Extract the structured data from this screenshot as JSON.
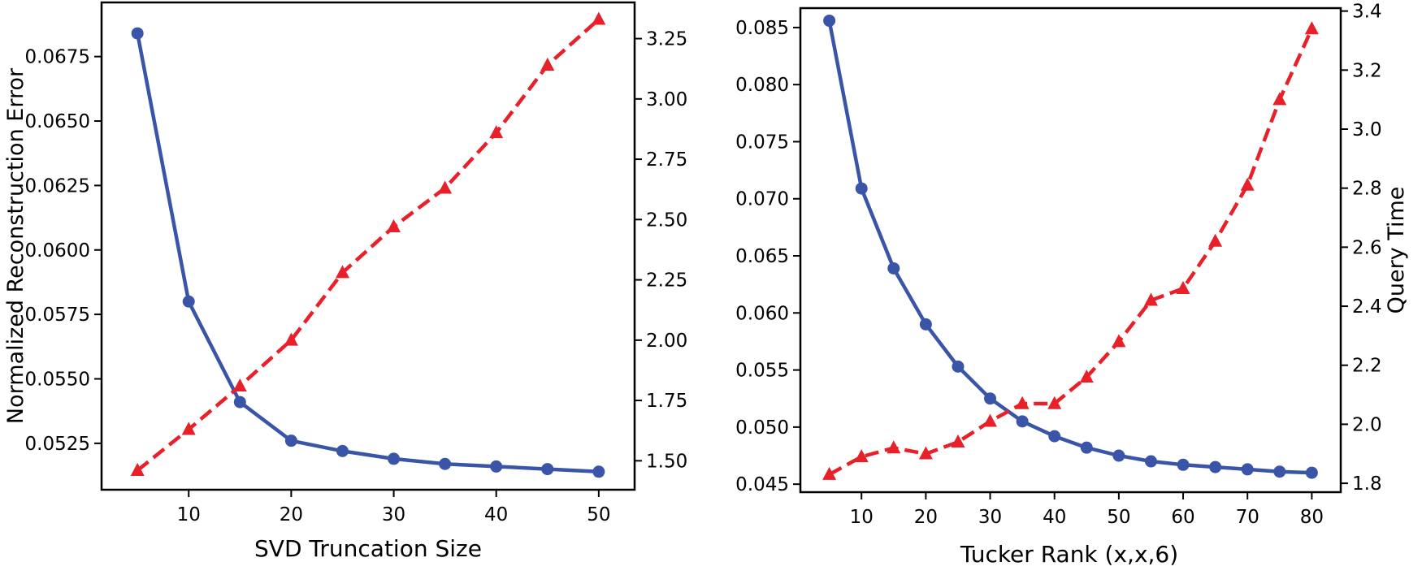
{
  "chart_data": [
    {
      "type": "line",
      "xlabel": "SVD  Truncation Size",
      "ylabel": "Normalized Reconstruction Error",
      "y2label": "",
      "xlim": [
        1.5,
        53.5
      ],
      "ylim": [
        0.0507,
        0.0696
      ],
      "y2lim": [
        1.38,
        3.4
      ],
      "xticks": [
        10,
        20,
        30,
        40,
        50
      ],
      "yticks": [
        0.0525,
        0.055,
        0.0575,
        0.06,
        0.0625,
        0.065,
        0.0675
      ],
      "ytick_labels": [
        "0.0525",
        "0.0550",
        "0.0575",
        "0.0600",
        "0.0625",
        "0.0650",
        "0.0675"
      ],
      "y2ticks": [
        1.5,
        1.75,
        2.0,
        2.25,
        2.5,
        2.75,
        3.0,
        3.25
      ],
      "y2tick_labels": [
        "1.50",
        "1.75",
        "2.00",
        "2.25",
        "2.50",
        "2.75",
        "3.00",
        "3.25"
      ],
      "x": [
        5,
        10,
        15,
        20,
        25,
        30,
        35,
        40,
        45,
        50
      ],
      "series": [
        {
          "name": "Normalized Reconstruction Error",
          "axis": "left",
          "color": "#3a55a8",
          "marker": "circle",
          "linestyle": "solid",
          "values": [
            0.0684,
            0.058,
            0.0541,
            0.0526,
            0.0522,
            0.0519,
            0.0517,
            0.0516,
            0.0515,
            0.0514
          ]
        },
        {
          "name": "Query Time",
          "axis": "right",
          "color": "#e8202a",
          "marker": "triangle",
          "linestyle": "dashed",
          "values": [
            1.46,
            1.63,
            1.81,
            2.0,
            2.28,
            2.47,
            2.63,
            2.86,
            3.14,
            3.33
          ]
        }
      ]
    },
    {
      "type": "line",
      "xlabel": "Tucker Rank  (x,x,6)",
      "ylabel": "",
      "y2label": "Query Time",
      "xlim": [
        0.5,
        84.5
      ],
      "ylim": [
        0.0443,
        0.0867
      ],
      "y2lim": [
        1.77,
        3.41
      ],
      "xticks": [
        10,
        20,
        30,
        40,
        50,
        60,
        70,
        80
      ],
      "yticks": [
        0.045,
        0.05,
        0.055,
        0.06,
        0.065,
        0.07,
        0.075,
        0.08,
        0.085
      ],
      "ytick_labels": [
        "0.045",
        "0.050",
        "0.055",
        "0.060",
        "0.065",
        "0.070",
        "0.075",
        "0.080",
        "0.085"
      ],
      "y2ticks": [
        1.8,
        2.0,
        2.2,
        2.4,
        2.6,
        2.8,
        3.0,
        3.2,
        3.4
      ],
      "y2tick_labels": [
        "1.8",
        "2.0",
        "2.2",
        "2.4",
        "2.6",
        "2.8",
        "3.0",
        "3.2",
        "3.4"
      ],
      "x": [
        5,
        10,
        15,
        20,
        25,
        30,
        35,
        40,
        45,
        50,
        55,
        60,
        65,
        70,
        75,
        80
      ],
      "series": [
        {
          "name": "Normalized Reconstruction Error",
          "axis": "left",
          "color": "#3a55a8",
          "marker": "circle",
          "linestyle": "solid",
          "values": [
            0.0856,
            0.0709,
            0.0639,
            0.059,
            0.0553,
            0.0525,
            0.0505,
            0.0492,
            0.0482,
            0.0475,
            0.047,
            0.0467,
            0.0465,
            0.0463,
            0.0461,
            0.046
          ]
        },
        {
          "name": "Query Time",
          "axis": "right",
          "color": "#e8202a",
          "marker": "triangle",
          "linestyle": "dashed",
          "values": [
            1.83,
            1.89,
            1.92,
            1.9,
            1.94,
            2.01,
            2.07,
            2.07,
            2.16,
            2.28,
            2.42,
            2.46,
            2.62,
            2.81,
            3.1,
            3.34
          ]
        }
      ]
    }
  ]
}
